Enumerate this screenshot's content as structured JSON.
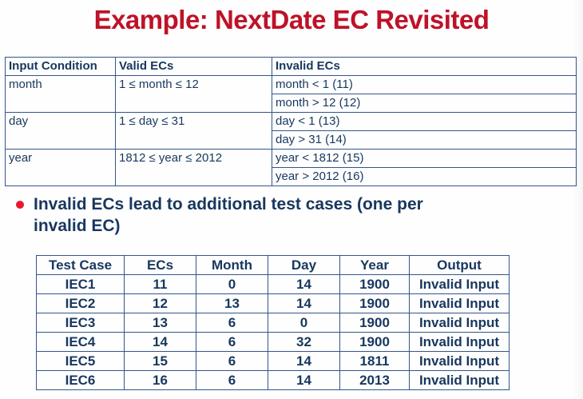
{
  "title": "Example: NextDate EC Revisited",
  "colors": {
    "title_red": "#BE1228",
    "bullet_red": "#E8192E",
    "navy_text": "#17375E",
    "table_border_blue": "#33568C",
    "background": "#FEFEFE"
  },
  "ec_table": {
    "headers": [
      "Input Condition",
      "Valid ECs",
      "Invalid ECs"
    ],
    "rows": [
      {
        "condition": "month",
        "valid": "1 ≤ month ≤ 12",
        "invalid": [
          "month < 1 (11)",
          "month > 12 (12)"
        ]
      },
      {
        "condition": "day",
        "valid": "1 ≤ day ≤ 31",
        "invalid": [
          "day < 1 (13)",
          "day > 31 (14)"
        ]
      },
      {
        "condition": "year",
        "valid": "1812 ≤ year ≤ 2012",
        "invalid": [
          "year < 1812 (15)",
          "year > 2012 (16)"
        ]
      }
    ]
  },
  "bullet": {
    "text": "Invalid ECs lead to additional test cases (one per invalid EC)"
  },
  "test_table": {
    "headers": [
      "Test Case",
      "ECs",
      "Month",
      "Day",
      "Year",
      "Output"
    ],
    "rows": [
      [
        "IEC1",
        "11",
        "0",
        "14",
        "1900",
        "Invalid Input"
      ],
      [
        "IEC2",
        "12",
        "13",
        "14",
        "1900",
        "Invalid Input"
      ],
      [
        "IEC3",
        "13",
        "6",
        "0",
        "1900",
        "Invalid Input"
      ],
      [
        "IEC4",
        "14",
        "6",
        "32",
        "1900",
        "Invalid Input"
      ],
      [
        "IEC5",
        "15",
        "6",
        "14",
        "1811",
        "Invalid Input"
      ],
      [
        "IEC6",
        "16",
        "6",
        "14",
        "2013",
        "Invalid Input"
      ]
    ]
  }
}
